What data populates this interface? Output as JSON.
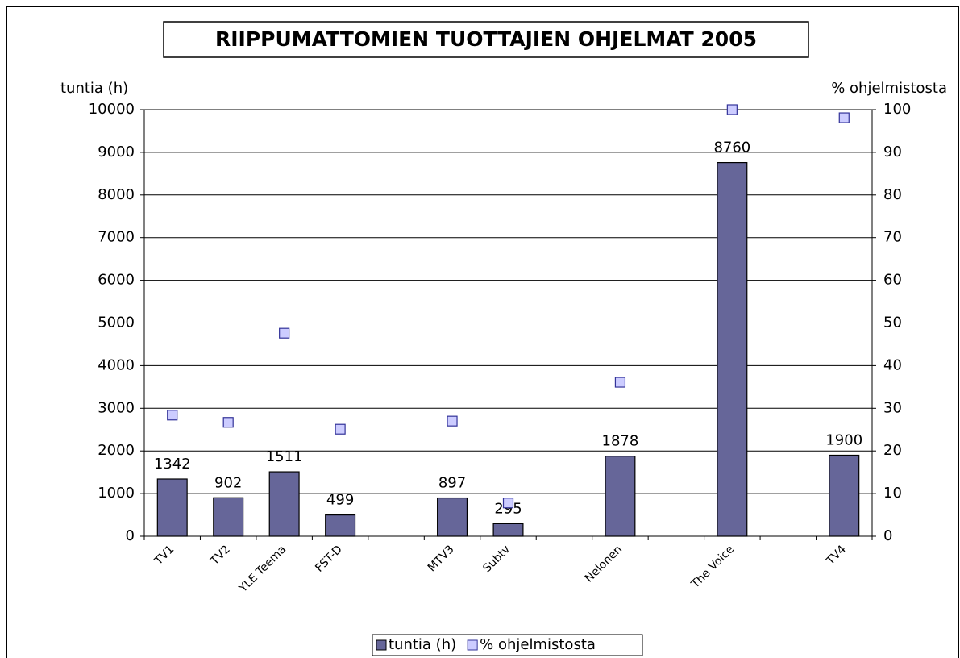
{
  "chart_data": {
    "type": "bar",
    "title": "RIIPPUMATTOMIEN TUOTTAJIEN OHJELMAT 2005",
    "y_label": "tuntia (h)",
    "y2_label": "% ohjelmistosta",
    "categories": [
      "TV1",
      "TV2",
      "YLE Teema",
      "FST-D",
      null,
      "MTV3",
      "Subtv",
      null,
      "Nelonen",
      null,
      "The Voice",
      null,
      "TV4"
    ],
    "series": [
      {
        "name": "tuntia (h)",
        "type": "bar",
        "color": "#666699",
        "values": [
          1342,
          902,
          1511,
          499,
          null,
          897,
          295,
          null,
          1878,
          null,
          8760,
          null,
          1900
        ]
      },
      {
        "name": "% ohjelmistosta",
        "type": "scatter",
        "axis": "y2",
        "color": "#ccccff",
        "values": [
          28.4,
          26.7,
          47.6,
          25.1,
          null,
          27.0,
          7.8,
          null,
          36.1,
          null,
          100,
          null,
          98.1
        ]
      }
    ],
    "ylim": [
      0,
      10000
    ],
    "yticks": [
      0,
      1000,
      2000,
      3000,
      4000,
      5000,
      6000,
      7000,
      8000,
      9000,
      10000
    ],
    "y2lim": [
      0,
      100
    ],
    "y2ticks": [
      0,
      10,
      20,
      30,
      40,
      50,
      60,
      70,
      80,
      90,
      100
    ],
    "grid": true,
    "legend": "bottom"
  }
}
